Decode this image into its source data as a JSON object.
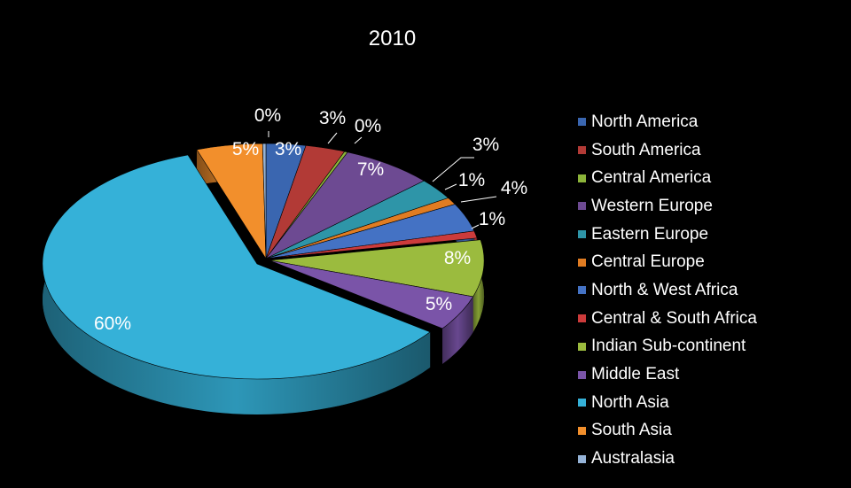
{
  "chart_data": {
    "type": "pie",
    "title": "2010",
    "legend_position": "right",
    "slices": [
      {
        "name": "North America",
        "value": 3,
        "label": "3%",
        "color": "#3a66b0"
      },
      {
        "name": "South America",
        "value": 3,
        "label": "3%",
        "color": "#b23a36"
      },
      {
        "name": "Central America",
        "value": 0,
        "label": "0%",
        "color": "#8cb43a"
      },
      {
        "name": "Western Europe",
        "value": 7,
        "label": "7%",
        "color": "#6d4a92"
      },
      {
        "name": "Eastern Europe",
        "value": 3,
        "label": "3%",
        "color": "#2e95a8"
      },
      {
        "name": "Central Europe",
        "value": 1,
        "label": "1%",
        "color": "#e07c22"
      },
      {
        "name": "North & West Africa",
        "value": 4,
        "label": "4%",
        "color": "#4472c4"
      },
      {
        "name": "Central & South Africa",
        "value": 1,
        "label": "1%",
        "color": "#cc3b3b"
      },
      {
        "name": "Indian Sub-continent",
        "value": 8,
        "label": "8%",
        "color": "#9bbb3e"
      },
      {
        "name": "Middle East",
        "value": 5,
        "label": "5%",
        "color": "#7a54a8"
      },
      {
        "name": "North Asia",
        "value": 60,
        "label": "60%",
        "color": "#35b1d8"
      },
      {
        "name": "South Asia",
        "value": 5,
        "label": "5%",
        "color": "#f28f2c"
      },
      {
        "name": "Australasia",
        "value": 0,
        "label": "0%",
        "color": "#95b3d7"
      }
    ]
  }
}
